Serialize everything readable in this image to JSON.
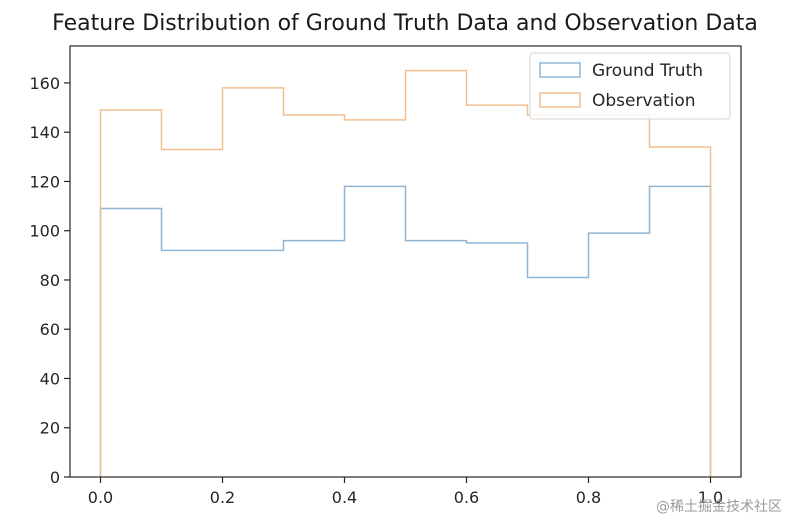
{
  "chart_data": {
    "type": "step-histogram",
    "title": "Feature Distribution of Ground Truth Data and Observation Data",
    "xlabel": "",
    "ylabel": "",
    "xlim": [
      -0.05,
      1.05
    ],
    "ylim": [
      0,
      175
    ],
    "xticks": [
      0.0,
      0.2,
      0.4,
      0.6,
      0.8,
      1.0
    ],
    "xtick_labels": [
      "0.0",
      "0.2",
      "0.4",
      "0.6",
      "0.8",
      "1.0"
    ],
    "yticks": [
      0,
      20,
      40,
      60,
      80,
      100,
      120,
      140,
      160
    ],
    "ytick_labels": [
      "0",
      "20",
      "40",
      "60",
      "80",
      "100",
      "120",
      "140",
      "160"
    ],
    "bin_edges": [
      0.0,
      0.1,
      0.2,
      0.3,
      0.4,
      0.5,
      0.6,
      0.7,
      0.8,
      0.9,
      1.0
    ],
    "grid": false,
    "legend_position": "top-right",
    "series": [
      {
        "name": "Ground Truth",
        "color": "#8fb5d6",
        "values": [
          109,
          92,
          92,
          96,
          118,
          96,
          95,
          81,
          99,
          118
        ]
      },
      {
        "name": "Observation",
        "color": "#f2bf8f",
        "values": [
          149,
          133,
          158,
          147,
          145,
          165,
          151,
          147,
          147,
          134
        ]
      }
    ]
  },
  "watermark": "@稀土掘金技术社区"
}
